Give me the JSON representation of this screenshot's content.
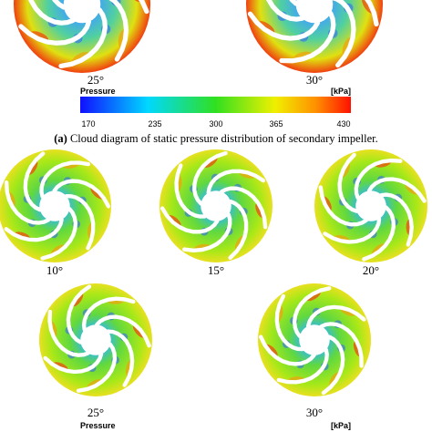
{
  "top_row": {
    "labels": [
      "25°",
      "30°"
    ]
  },
  "colorbar": {
    "title": "Pressure",
    "unit": "[kPa]",
    "ticks": [
      "170",
      "235",
      "300",
      "365",
      "430"
    ]
  },
  "caption": {
    "prefix": "(a)",
    "text": "Cloud diagram of static pressure distribution of secondary impeller."
  },
  "middle_row": {
    "labels": [
      "10°",
      "15°",
      "20°"
    ]
  },
  "bottom_row": {
    "labels": [
      "25°",
      "30°"
    ]
  },
  "bottom_colorbar": {
    "title": "Pressure",
    "unit": "[kPa]"
  }
}
